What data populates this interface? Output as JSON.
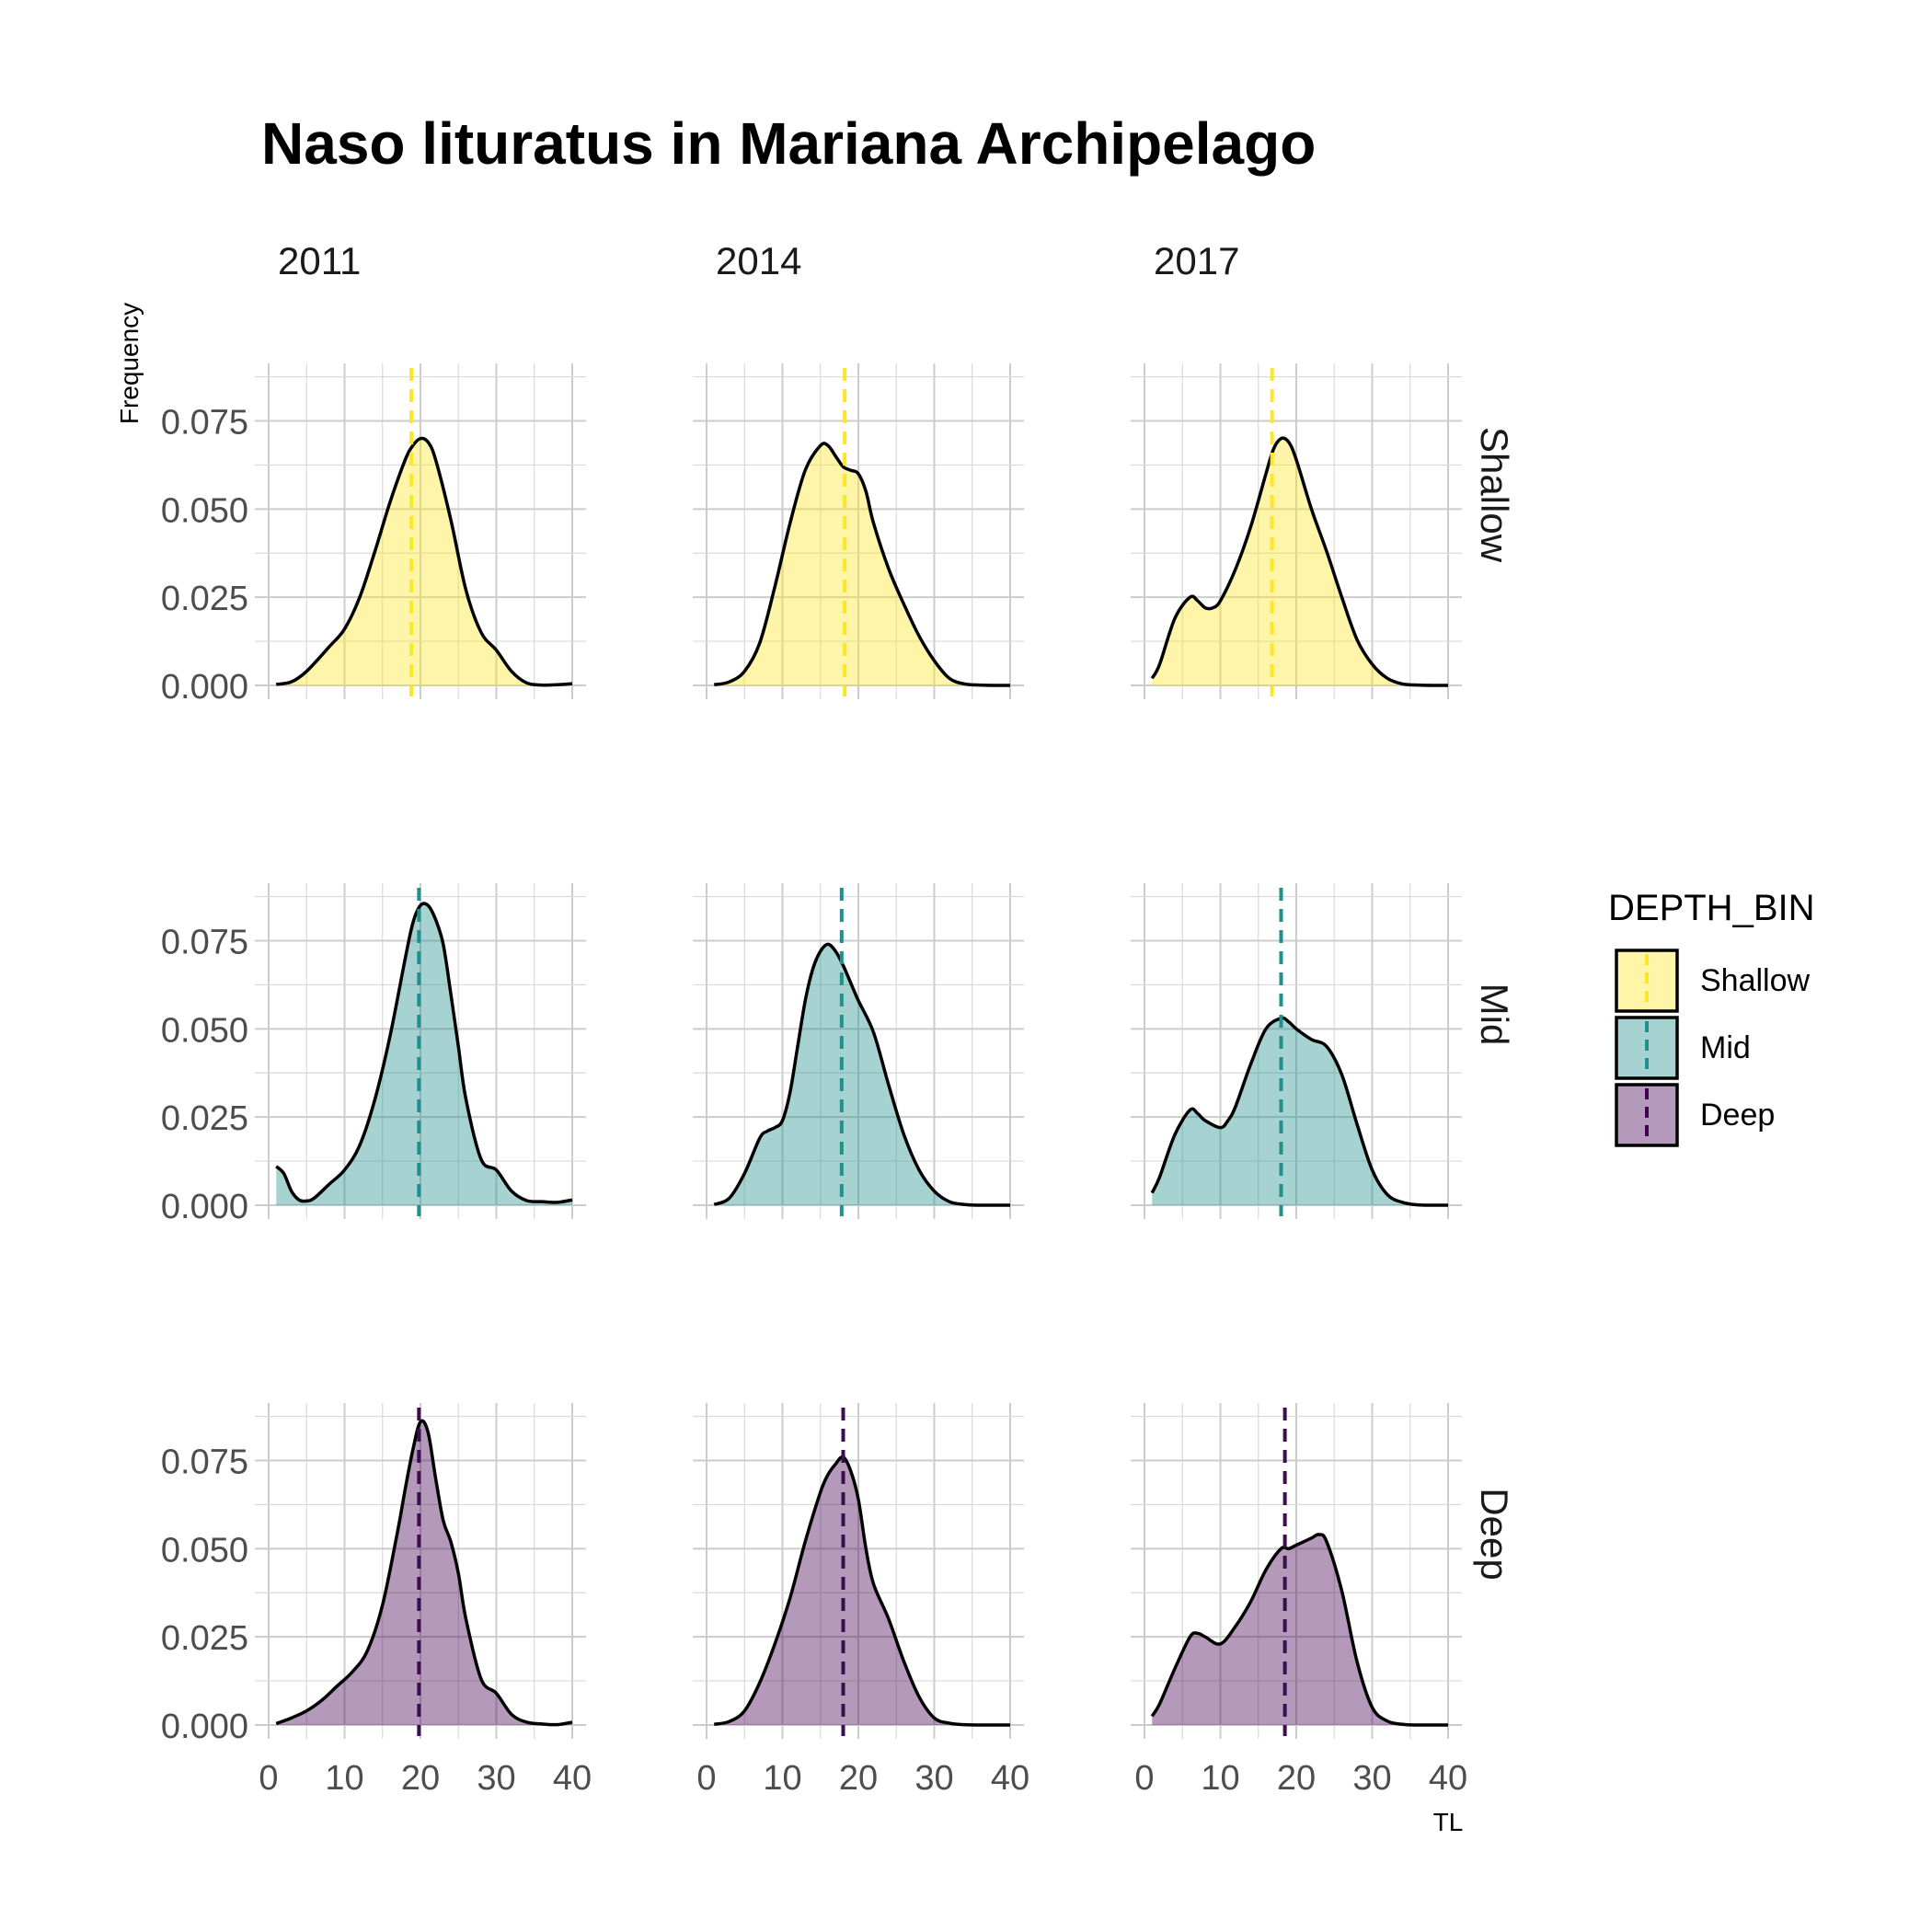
{
  "chart_data": {
    "type": "area",
    "title": "Naso lituratus in Mariana Archipelago",
    "xlabel": "TL",
    "ylabel": "Frequency",
    "xlim": [
      0,
      40
    ],
    "ylim": [
      0,
      0.09
    ],
    "x_ticks": [
      "0",
      "10",
      "20",
      "30",
      "40"
    ],
    "y_ticks": [
      "0.000",
      "0.025",
      "0.050",
      "0.075"
    ],
    "y_tick_values": [
      0,
      0.025,
      0.05,
      0.075
    ],
    "x_tick_values": [
      0,
      10,
      20,
      30,
      40
    ],
    "grid": true,
    "columns": [
      "2011",
      "2014",
      "2017"
    ],
    "rows": [
      "Shallow",
      "Mid",
      "Deep"
    ],
    "legend": {
      "title": "DEPTH_BIN",
      "position": "right",
      "entries": [
        {
          "label": "Shallow",
          "color": "#FDE725"
        },
        {
          "label": "Mid",
          "color": "#21908C"
        },
        {
          "label": "Deep",
          "color": "#440154"
        }
      ]
    },
    "colors": {
      "Shallow": "#FDE725",
      "Mid": "#21908C",
      "Deep": "#440154",
      "Shallow_line": "#FDE725",
      "Mid_line": "#21908C",
      "Deep_line": "#3B0F4F"
    },
    "panels": [
      {
        "year": "2011",
        "depth": "Shallow",
        "mean": 18.8,
        "x": [
          1,
          3,
          5,
          8,
          10,
          12,
          14,
          16,
          18,
          19,
          20,
          21,
          22,
          24,
          26,
          28,
          30,
          32,
          34,
          36,
          38,
          40
        ],
        "y": [
          0.0003,
          0.001,
          0.004,
          0.011,
          0.016,
          0.025,
          0.038,
          0.052,
          0.064,
          0.068,
          0.07,
          0.069,
          0.064,
          0.047,
          0.027,
          0.015,
          0.01,
          0.004,
          0.0007,
          0.0001,
          0.0002,
          0.0005
        ]
      },
      {
        "year": "2014",
        "depth": "Shallow",
        "mean": 18.2,
        "x": [
          1,
          3,
          5,
          7,
          9,
          11,
          13,
          15,
          16,
          17,
          18,
          19,
          20,
          21,
          22,
          24,
          26,
          28,
          30,
          32,
          34,
          36,
          38,
          40
        ],
        "y": [
          0.0002,
          0.001,
          0.004,
          0.012,
          0.028,
          0.046,
          0.061,
          0.068,
          0.068,
          0.065,
          0.062,
          0.061,
          0.06,
          0.055,
          0.046,
          0.033,
          0.023,
          0.014,
          0.007,
          0.002,
          0.0004,
          0.0001,
          0,
          0
        ]
      },
      {
        "year": "2017",
        "depth": "Shallow",
        "mean": 16.8,
        "x": [
          1,
          2,
          4,
          6,
          7,
          8,
          9,
          10,
          12,
          14,
          16,
          17,
          18,
          19,
          20,
          22,
          24,
          26,
          28,
          30,
          32,
          34,
          36,
          38,
          40
        ],
        "y": [
          0.002,
          0.006,
          0.019,
          0.025,
          0.024,
          0.022,
          0.022,
          0.024,
          0.033,
          0.045,
          0.06,
          0.067,
          0.07,
          0.069,
          0.064,
          0.05,
          0.038,
          0.025,
          0.013,
          0.006,
          0.002,
          0.0004,
          0.0001,
          0,
          0
        ]
      },
      {
        "year": "2011",
        "depth": "Mid",
        "mean": 19.8,
        "x": [
          1,
          2,
          3,
          4,
          5,
          6,
          8,
          10,
          12,
          14,
          16,
          18,
          19,
          20,
          21,
          22,
          23,
          24,
          25,
          26,
          28,
          30,
          32,
          34,
          36,
          38,
          40
        ],
        "y": [
          0.011,
          0.009,
          0.004,
          0.0015,
          0.0012,
          0.002,
          0.006,
          0.01,
          0.017,
          0.03,
          0.048,
          0.07,
          0.08,
          0.085,
          0.085,
          0.081,
          0.074,
          0.06,
          0.045,
          0.03,
          0.013,
          0.01,
          0.004,
          0.0013,
          0.001,
          0.0008,
          0.0015
        ]
      },
      {
        "year": "2014",
        "depth": "Mid",
        "mean": 17.8,
        "x": [
          1,
          3,
          5,
          7,
          8,
          9,
          10,
          11,
          12,
          13,
          14,
          15,
          16,
          17,
          18,
          19,
          20,
          22,
          24,
          26,
          28,
          30,
          32,
          34,
          36,
          38,
          40
        ],
        "y": [
          0.0002,
          0.002,
          0.009,
          0.019,
          0.021,
          0.022,
          0.024,
          0.032,
          0.045,
          0.058,
          0.067,
          0.072,
          0.074,
          0.072,
          0.068,
          0.063,
          0.058,
          0.049,
          0.034,
          0.02,
          0.01,
          0.004,
          0.001,
          0.0002,
          0,
          0,
          0
        ]
      },
      {
        "year": "2017",
        "depth": "Mid",
        "mean": 18.0,
        "x": [
          1,
          2,
          4,
          6,
          7,
          8,
          10,
          11,
          12,
          14,
          16,
          18,
          19,
          20,
          22,
          24,
          26,
          28,
          30,
          32,
          34,
          36,
          38,
          40
        ],
        "y": [
          0.0035,
          0.008,
          0.02,
          0.027,
          0.026,
          0.024,
          0.022,
          0.024,
          0.028,
          0.04,
          0.05,
          0.053,
          0.052,
          0.05,
          0.047,
          0.045,
          0.037,
          0.023,
          0.01,
          0.003,
          0.0008,
          0.0001,
          0,
          0
        ]
      },
      {
        "year": "2011",
        "depth": "Deep",
        "mean": 19.8,
        "x": [
          1,
          3,
          5,
          7,
          9,
          11,
          13,
          15,
          17,
          18,
          19,
          20,
          21,
          22,
          23,
          24,
          25,
          26,
          28,
          30,
          32,
          34,
          36,
          38,
          40
        ],
        "y": [
          0.0004,
          0.002,
          0.004,
          0.007,
          0.011,
          0.015,
          0.021,
          0.034,
          0.055,
          0.067,
          0.078,
          0.086,
          0.083,
          0.07,
          0.058,
          0.052,
          0.043,
          0.03,
          0.013,
          0.009,
          0.003,
          0.0008,
          0.0003,
          0.0001,
          0.0008
        ]
      },
      {
        "year": "2014",
        "depth": "Deep",
        "mean": 18.0,
        "x": [
          1,
          3,
          5,
          7,
          9,
          11,
          13,
          15,
          16,
          17,
          18,
          19,
          20,
          21,
          22,
          24,
          26,
          28,
          30,
          32,
          34,
          36,
          38,
          40
        ],
        "y": [
          0.0002,
          0.001,
          0.004,
          0.012,
          0.023,
          0.036,
          0.052,
          0.066,
          0.071,
          0.074,
          0.076,
          0.072,
          0.064,
          0.05,
          0.04,
          0.03,
          0.018,
          0.008,
          0.002,
          0.0005,
          0.0001,
          0,
          0,
          0
        ]
      },
      {
        "year": "2017",
        "depth": "Deep",
        "mean": 18.5,
        "x": [
          1,
          2,
          4,
          6,
          7,
          8,
          10,
          12,
          14,
          16,
          18,
          19,
          20,
          22,
          23,
          24,
          26,
          28,
          30,
          32,
          34,
          36,
          38,
          40
        ],
        "y": [
          0.0025,
          0.006,
          0.016,
          0.025,
          0.026,
          0.025,
          0.023,
          0.028,
          0.035,
          0.044,
          0.05,
          0.05,
          0.051,
          0.053,
          0.054,
          0.052,
          0.038,
          0.018,
          0.005,
          0.0011,
          0.0002,
          0,
          0,
          0
        ]
      }
    ]
  }
}
